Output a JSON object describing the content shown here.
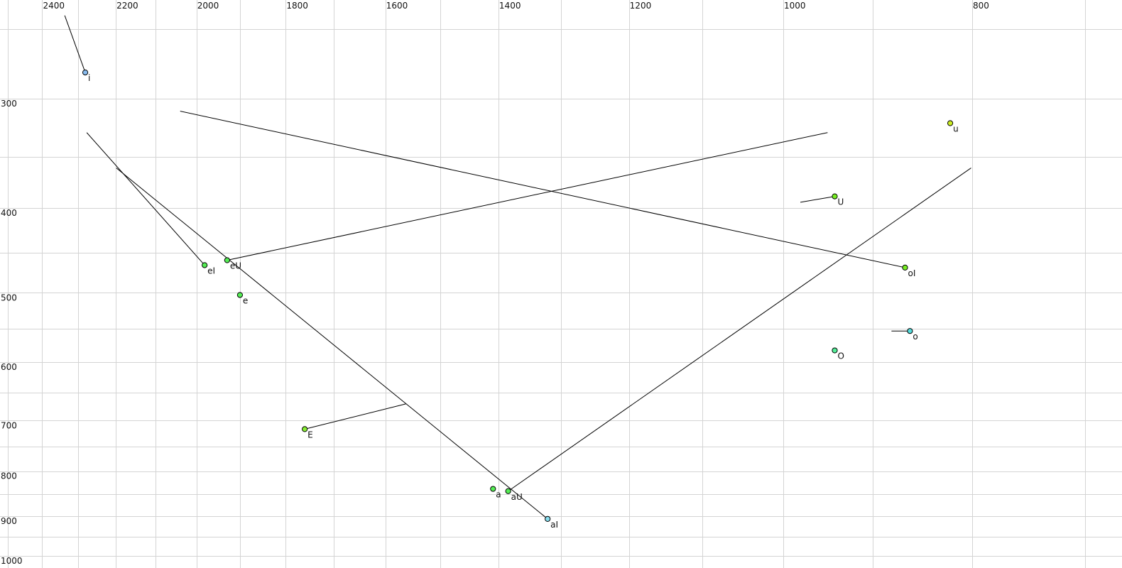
{
  "chart_data": {
    "type": "scatter",
    "title": "",
    "xlabel": "",
    "ylabel": "",
    "x_axis": {
      "quantity": "F2",
      "scale": "log",
      "reversed": true,
      "position": "top",
      "range": [
        2500,
        700
      ],
      "grid_step": 100,
      "tick_labels": [
        "2400",
        "2200",
        "2000",
        "1800",
        "1600",
        "1400",
        "1200",
        "1000",
        "800"
      ],
      "ticks": [
        2400,
        2200,
        2000,
        1800,
        1600,
        1400,
        1200,
        1000,
        800
      ]
    },
    "y_axis": {
      "quantity": "F1",
      "scale": "log",
      "reversed": false,
      "position": "left",
      "range": [
        250,
        1000
      ],
      "grid_step": 50,
      "tick_labels": [
        "300",
        "400",
        "500",
        "600",
        "700",
        "800",
        "900",
        "1000"
      ],
      "ticks": [
        300,
        400,
        500,
        600,
        700,
        800,
        900,
        1000
      ]
    },
    "grid": true,
    "points": [
      {
        "label": "i",
        "f2": 2281,
        "f1": 280,
        "color": "#88bbee",
        "traj_from": [
          2337,
          241
        ]
      },
      {
        "label": "eI",
        "f2": 1981,
        "f1": 465,
        "color": "#55ee55",
        "traj_from": [
          2277,
          328
        ]
      },
      {
        "label": "eU",
        "f2": 1929,
        "f1": 459,
        "color": "#55ee55",
        "traj_to": [
          949,
          328
        ]
      },
      {
        "label": "e",
        "f2": 1900,
        "f1": 503,
        "color": "#55ee55"
      },
      {
        "label": "E",
        "f2": 1760,
        "f1": 716,
        "color": "#88ee33",
        "traj_to": [
          1562,
          670
        ]
      },
      {
        "label": "a",
        "f2": 1409,
        "f1": 838,
        "color": "#55ee55"
      },
      {
        "label": "aU",
        "f2": 1384,
        "f1": 843,
        "color": "#55ee55",
        "traj_to": [
          801,
          360
        ]
      },
      {
        "label": "aI",
        "f2": 1321,
        "f1": 907,
        "color": "#88ddee",
        "traj_from": [
          2199,
          360
        ]
      },
      {
        "label": "U",
        "f2": 941,
        "f1": 388,
        "color": "#77ee22",
        "traj_from": [
          980,
          394
        ]
      },
      {
        "label": "u",
        "f2": 821,
        "f1": 320,
        "color": "#ccee22"
      },
      {
        "label": "oI",
        "f2": 866,
        "f1": 468,
        "color": "#77ee22",
        "traj_from": [
          2039,
          310
        ]
      },
      {
        "label": "o",
        "f2": 861,
        "f1": 553,
        "color": "#55dddd",
        "traj_from": [
          880,
          553
        ]
      },
      {
        "label": "O",
        "f2": 941,
        "f1": 582,
        "color": "#55ee99"
      }
    ]
  }
}
